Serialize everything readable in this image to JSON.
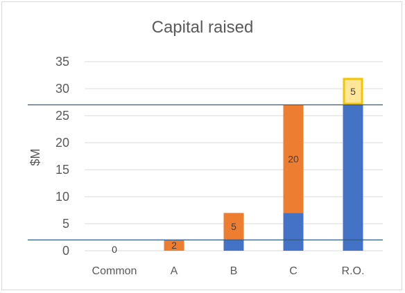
{
  "chart_data": {
    "type": "bar",
    "stacked": true,
    "title": "Capital raised",
    "ylabel": "$M",
    "xlabel": "",
    "ylim": [
      0,
      35
    ],
    "yticks": [
      0,
      5,
      10,
      15,
      20,
      25,
      30,
      35
    ],
    "grid": true,
    "categories": [
      "Common",
      "A",
      "B",
      "C",
      "R.O."
    ],
    "series": [
      {
        "values": [
          0,
          0,
          2,
          7,
          27
        ],
        "color": "#4472c4"
      },
      {
        "values": [
          0,
          2,
          5,
          20,
          0
        ],
        "color": "#ed7d31"
      },
      {
        "values": [
          0,
          0,
          0,
          0,
          5
        ],
        "color": "#ffe699",
        "border": "#f5c400"
      }
    ],
    "data_labels": [
      {
        "category": "Common",
        "text": "0"
      },
      {
        "category": "A",
        "text": "2"
      },
      {
        "category": "B",
        "text": "5"
      },
      {
        "category": "C",
        "text": "20"
      },
      {
        "category": "R.O.",
        "text": "5"
      }
    ],
    "reference_lines": [
      2,
      27
    ]
  }
}
